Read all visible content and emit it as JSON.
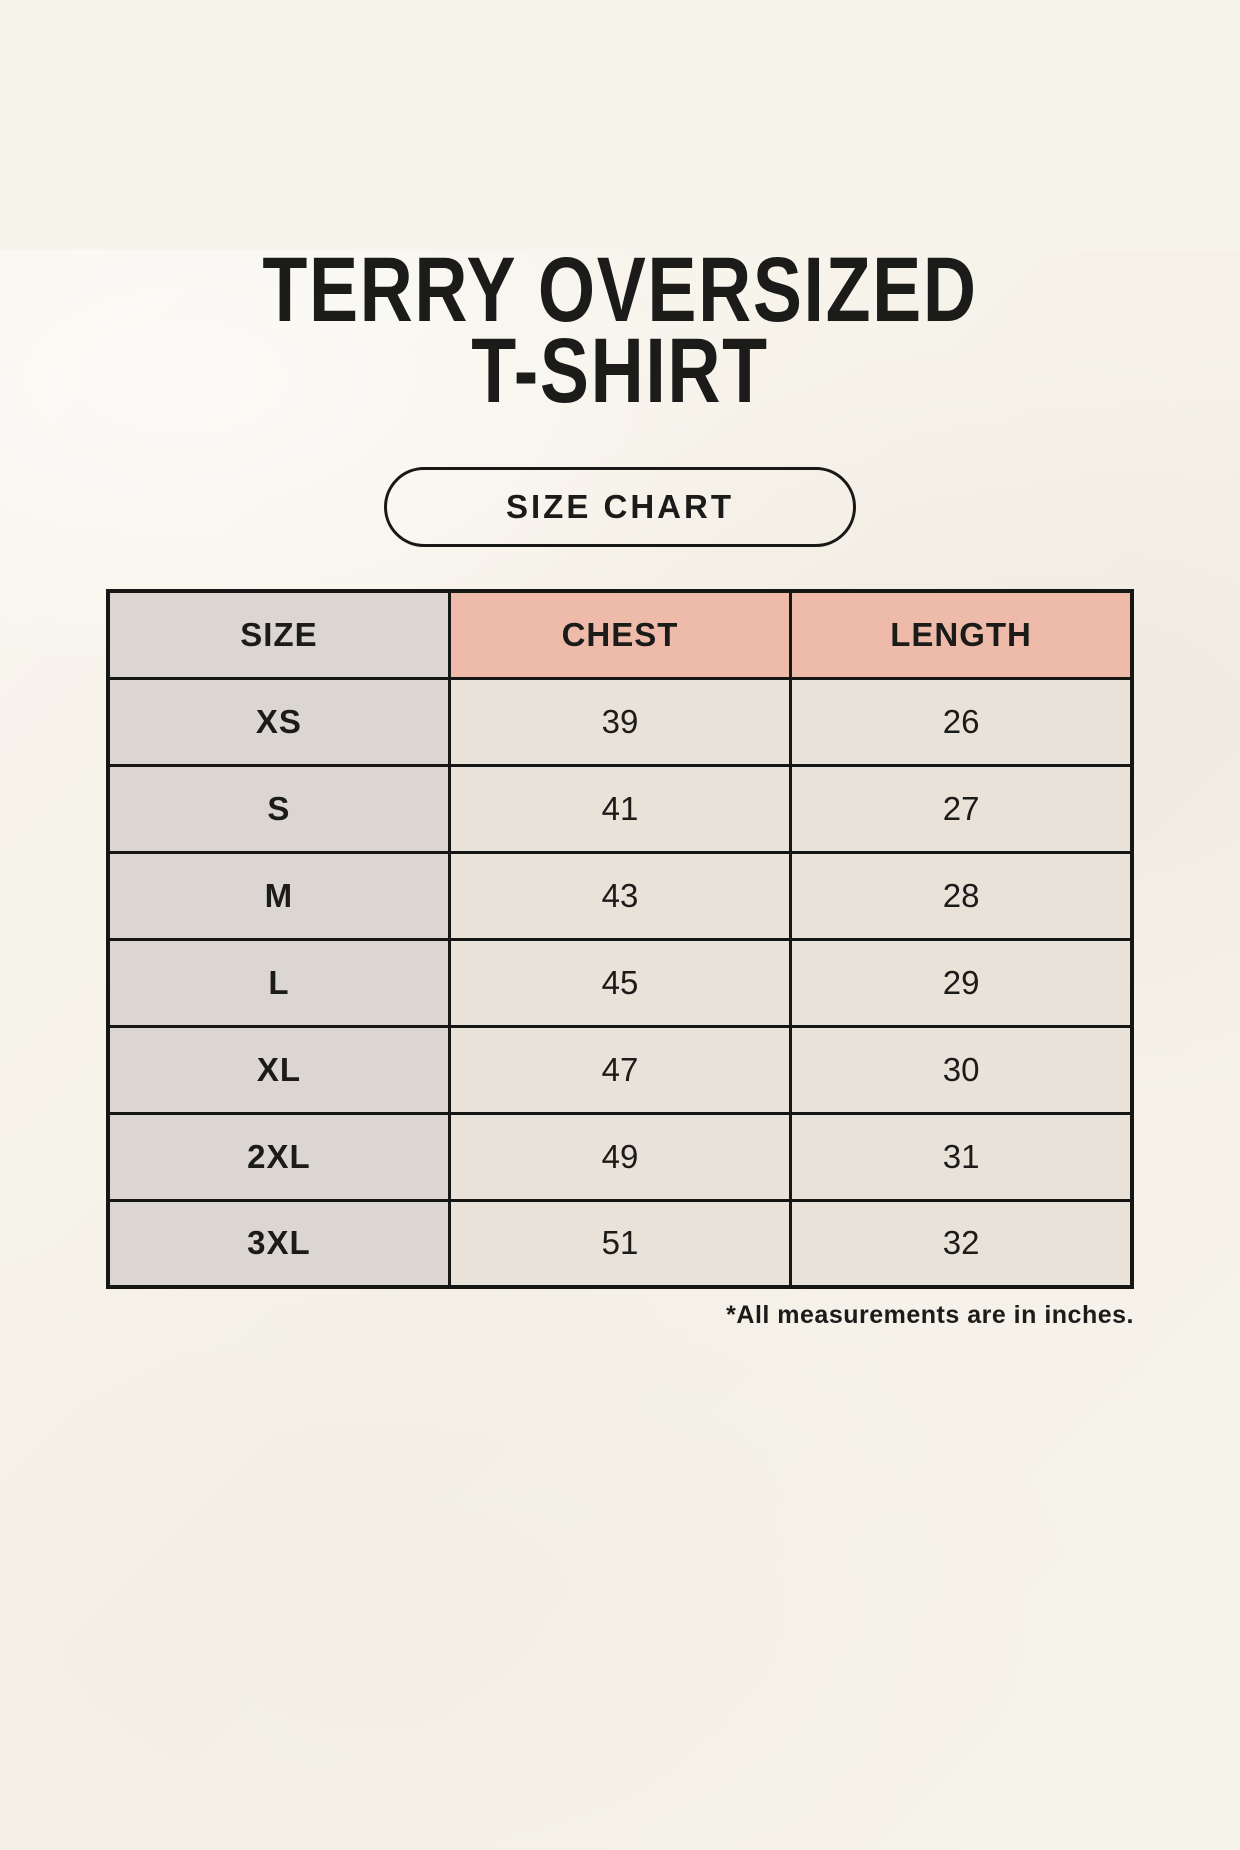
{
  "header": {
    "title_line1": "TERRY OVERSIZED",
    "title_line2": "T-SHIRT",
    "badge_label": "SIZE CHART"
  },
  "size_table": {
    "columns": [
      "SIZE",
      "CHEST",
      "LENGTH"
    ],
    "rows": [
      [
        "XS",
        "39",
        "26"
      ],
      [
        "S",
        "41",
        "27"
      ],
      [
        "M",
        "43",
        "28"
      ],
      [
        "L",
        "45",
        "29"
      ],
      [
        "XL",
        "47",
        "30"
      ],
      [
        "2XL",
        "49",
        "31"
      ],
      [
        "3XL",
        "51",
        "32"
      ]
    ]
  },
  "footnote": "*All measurements are in inches.",
  "colors": {
    "page_background": "#f7f4ec",
    "header_accent": "#eebbaa",
    "size_column_background": "#dcd6d2",
    "value_cell_background": "#e9e2d8",
    "border": "#161614",
    "text": "#1b1b19"
  },
  "chart_data": {
    "type": "table",
    "title": "TERRY OVERSIZED T-SHIRT",
    "subtitle": "SIZE CHART",
    "columns": [
      "SIZE",
      "CHEST",
      "LENGTH"
    ],
    "rows": [
      {
        "size": "XS",
        "chest": 39,
        "length": 26
      },
      {
        "size": "S",
        "chest": 41,
        "length": 27
      },
      {
        "size": "M",
        "chest": 43,
        "length": 28
      },
      {
        "size": "L",
        "chest": 45,
        "length": 29
      },
      {
        "size": "XL",
        "chest": 47,
        "length": 30
      },
      {
        "size": "2XL",
        "chest": 49,
        "length": 31
      },
      {
        "size": "3XL",
        "chest": 51,
        "length": 32
      }
    ],
    "annotations": [
      "*All measurements are in inches."
    ],
    "units": "inches"
  }
}
